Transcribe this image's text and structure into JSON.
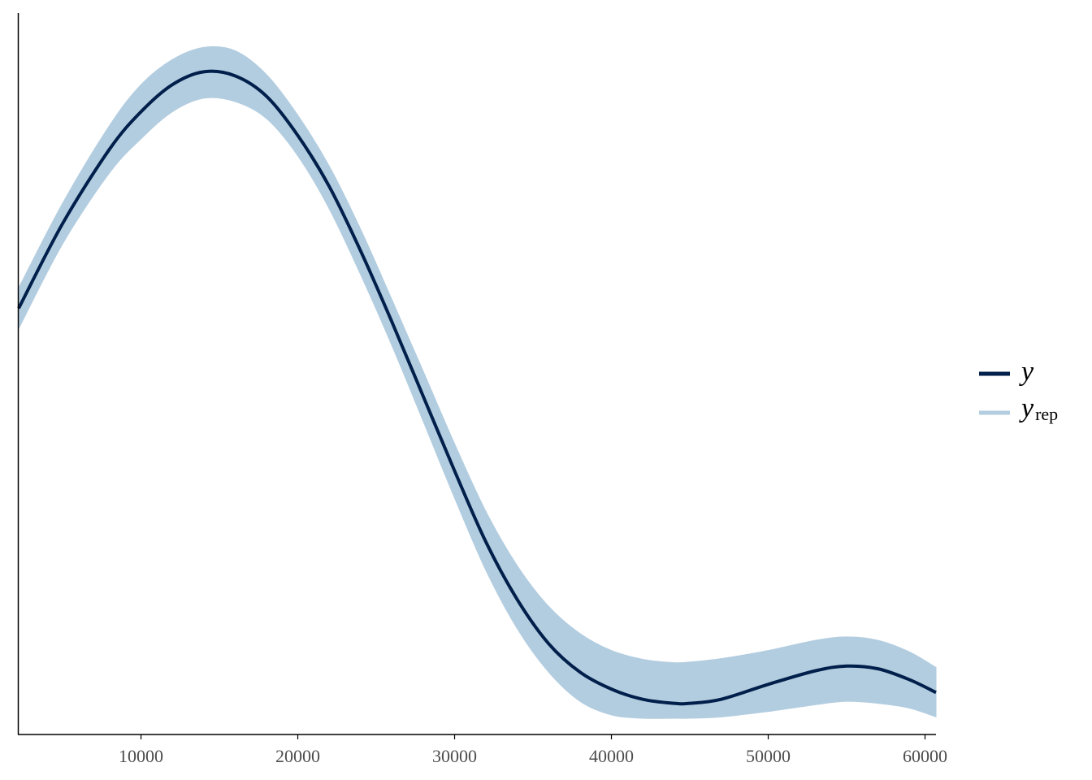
{
  "colors": {
    "y": "#011f4b",
    "yrep": "#b3cde0",
    "axis": "#000000",
    "tick_label": "#4d4d4d"
  },
  "chart_data": {
    "type": "line",
    "title": "",
    "xlabel": "",
    "ylabel": "",
    "grid": false,
    "legend_position": "right",
    "xlim": [
      2200,
      60700
    ],
    "ylim": [
      0,
      1
    ],
    "x_ticks": [
      10000,
      20000,
      30000,
      40000,
      50000,
      60000
    ],
    "x_tick_labels": [
      "10000",
      "20000",
      "30000",
      "40000",
      "50000",
      "60000"
    ],
    "legend": [
      {
        "key": "y",
        "label_main": "y",
        "label_sub": ""
      },
      {
        "key": "yrep",
        "label_main": "y",
        "label_sub": "rep"
      }
    ],
    "series": [
      {
        "name": "y",
        "x": [
          2200,
          5000,
          8000,
          10000,
          12000,
          14000,
          16000,
          18000,
          20000,
          22000,
          24000,
          26000,
          28000,
          30000,
          32000,
          34000,
          36000,
          38000,
          40000,
          42000,
          44000,
          45000,
          47000,
          50000,
          53000,
          55000,
          57000,
          59000,
          60700
        ],
        "y": [
          0.605,
          0.73,
          0.84,
          0.895,
          0.935,
          0.954,
          0.948,
          0.918,
          0.86,
          0.785,
          0.69,
          0.585,
          0.475,
          0.365,
          0.26,
          0.175,
          0.11,
          0.068,
          0.043,
          0.028,
          0.022,
          0.022,
          0.028,
          0.05,
          0.07,
          0.077,
          0.073,
          0.057,
          0.038
        ]
      },
      {
        "name": "yrep",
        "x": [
          2200,
          5000,
          8000,
          10000,
          12000,
          14000,
          16000,
          18000,
          20000,
          22000,
          24000,
          26000,
          28000,
          30000,
          32000,
          34000,
          36000,
          38000,
          40000,
          42000,
          44000,
          45000,
          47000,
          50000,
          53000,
          55000,
          57000,
          59000,
          60700
        ],
        "y_upper": [
          0.635,
          0.76,
          0.875,
          0.935,
          0.972,
          0.99,
          0.985,
          0.95,
          0.89,
          0.815,
          0.722,
          0.618,
          0.512,
          0.405,
          0.305,
          0.225,
          0.165,
          0.125,
          0.1,
          0.087,
          0.082,
          0.083,
          0.088,
          0.1,
          0.115,
          0.12,
          0.115,
          0.098,
          0.075
        ],
        "y_lower": [
          0.575,
          0.7,
          0.805,
          0.855,
          0.895,
          0.915,
          0.91,
          0.885,
          0.83,
          0.752,
          0.655,
          0.55,
          0.438,
          0.325,
          0.218,
          0.132,
          0.068,
          0.025,
          0.005,
          0.0,
          0.0,
          0.0,
          0.002,
          0.01,
          0.02,
          0.025,
          0.022,
          0.015,
          0.002
        ]
      }
    ]
  }
}
